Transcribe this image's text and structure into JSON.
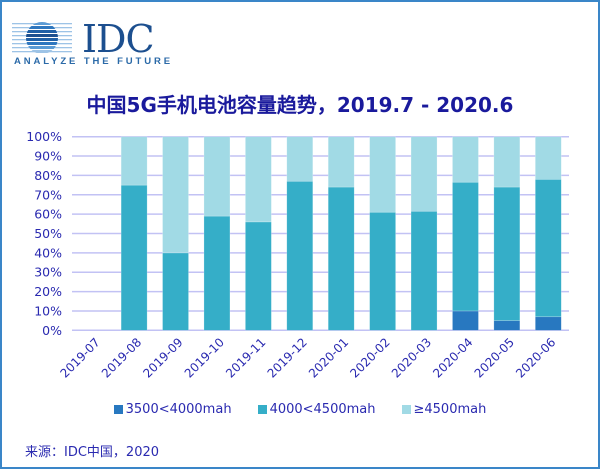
{
  "header": {
    "logo_text": "IDC",
    "logo_tagline": "ANALYZE THE FUTURE"
  },
  "footer": {
    "source": "来源：IDC中国，2020"
  },
  "colors": {
    "series_3500_4000": "#2878c0",
    "series_4000_4500": "#35aec8",
    "series_4500_plus": "#a1dae5",
    "gridline": "#c2c2f4",
    "text": "#2a2ab0",
    "title": "#1a1a9c",
    "frame_border": "#3a86c8"
  },
  "chart_data": {
    "type": "bar",
    "stacked": true,
    "percent_stacked": true,
    "title": "中国5G手机电池容量趋势，2019.7 - 2020.6",
    "xlabel": "",
    "ylabel": "",
    "ylim": [
      0,
      100
    ],
    "yticks": [
      "0%",
      "10%",
      "20%",
      "30%",
      "40%",
      "50%",
      "60%",
      "70%",
      "80%",
      "90%",
      "100%"
    ],
    "grid": true,
    "legend_position": "bottom",
    "categories": [
      "2019-07",
      "2019-08",
      "2019-09",
      "2019-10",
      "2019-11",
      "2019-12",
      "2020-01",
      "2020-02",
      "2020-03",
      "2020-04",
      "2020-05",
      "2020-06"
    ],
    "series": [
      {
        "name": "3500<4000mah",
        "values": [
          0,
          0,
          0,
          0,
          0,
          0,
          0,
          0,
          0,
          10,
          5,
          7
        ]
      },
      {
        "name": "4000<4500mah",
        "values": [
          0,
          75,
          40,
          59,
          56,
          77,
          74,
          61,
          61.5,
          66.5,
          69,
          71
        ]
      },
      {
        "name": "≥4500mah",
        "values": [
          0,
          25,
          60,
          41,
          44,
          23,
          26,
          39,
          38.5,
          23.5,
          26,
          22
        ]
      }
    ]
  }
}
